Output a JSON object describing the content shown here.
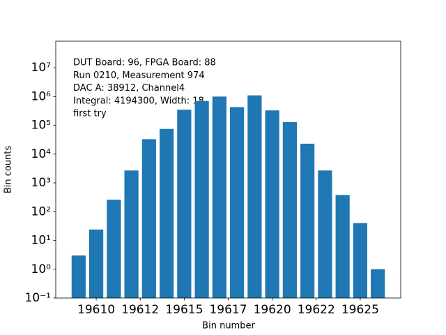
{
  "chart_data": {
    "type": "bar",
    "x_label": "Bin number",
    "y_label": "Bin counts",
    "annotations": [
      "DUT Board: 96, FPGA Board: 88",
      "Run 0210, Measurement 974",
      "DAC A: 38912, Channel4",
      "Integral: 4194300, Width: 18",
      "first try"
    ],
    "x": [
      19609,
      19610,
      19611,
      19612,
      19613,
      19614,
      19615,
      19616,
      19617,
      19618,
      19619,
      19620,
      19621,
      19622,
      19623,
      19624,
      19625,
      19626
    ],
    "values": [
      3,
      24,
      260,
      2700,
      33000,
      75000,
      350000,
      700000,
      1000000,
      430000,
      1100000,
      330000,
      130000,
      23000,
      2700,
      380,
      40,
      1
    ],
    "color": "#1f77b4",
    "xlim": [
      19607.7,
      19627.3
    ],
    "xticks": [
      19610,
      {
        "value": 19612.5,
        "label": "19612"
      },
      19615,
      {
        "value": 19617.5,
        "label": "19617"
      },
      19620,
      {
        "value": 19622.5,
        "label": "19622"
      },
      19625
    ],
    "ylim": [
      0.1,
      84000000
    ],
    "yticks": [
      {
        "value": 0.1,
        "label": "10⁻¹"
      },
      {
        "value": 1,
        "label": "10⁰"
      },
      {
        "value": 10,
        "label": "10¹"
      },
      {
        "value": 100,
        "label": "10²"
      },
      {
        "value": 1000,
        "label": "10³"
      },
      {
        "value": 10000,
        "label": "10⁴"
      },
      {
        "value": 100000,
        "label": "10⁵"
      },
      {
        "value": 1000000,
        "label": "10⁶"
      },
      {
        "value": 10000000,
        "label": "10⁷"
      }
    ],
    "log_y": true,
    "bar_width": 0.8
  }
}
